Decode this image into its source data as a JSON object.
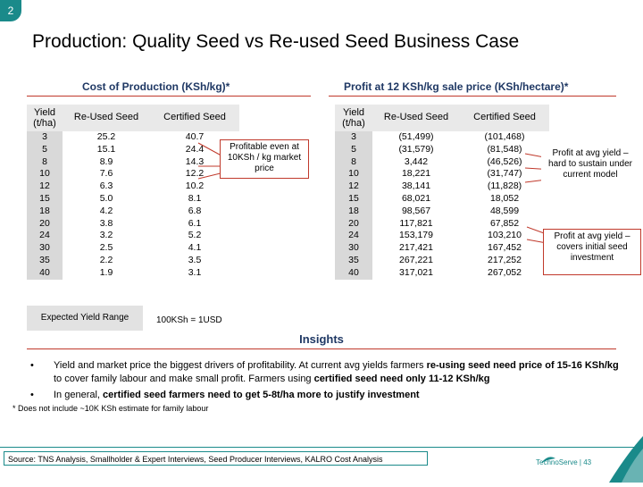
{
  "slide_number": "2",
  "title": "Production: Quality Seed vs Re-used Seed Business Case",
  "left_section": {
    "heading": "Cost of Production (KSh/kg)*",
    "headers": [
      "Yield (t/ha)",
      "Re-Used Seed",
      "Certified Seed"
    ],
    "rows": [
      [
        "3",
        "25.2",
        "40.7"
      ],
      [
        "5",
        "15.1",
        "24.4"
      ],
      [
        "8",
        "8.9",
        "14.3"
      ],
      [
        "10",
        "7.6",
        "12.2"
      ],
      [
        "12",
        "6.3",
        "10.2"
      ],
      [
        "15",
        "5.0",
        "8.1"
      ],
      [
        "18",
        "4.2",
        "6.8"
      ],
      [
        "20",
        "3.8",
        "6.1"
      ],
      [
        "24",
        "3.2",
        "5.2"
      ],
      [
        "30",
        "2.5",
        "4.1"
      ],
      [
        "35",
        "2.2",
        "3.5"
      ],
      [
        "40",
        "1.9",
        "3.1"
      ]
    ],
    "callout": "Profitable even at 10KSh / kg market price",
    "expected_label": "Expected Yield Range",
    "exchange_note": "100KSh = 1USD"
  },
  "right_section": {
    "heading": "Profit at 12 KSh/kg sale price (KSh/hectare)*",
    "headers": [
      "Yield (t/ha)",
      "Re-Used Seed",
      "Certified Seed"
    ],
    "rows": [
      [
        "3",
        "(51,499)",
        "(101,468)"
      ],
      [
        "5",
        "(31,579)",
        "(81,548)"
      ],
      [
        "8",
        "3,442",
        "(46,526)"
      ],
      [
        "10",
        "18,221",
        "(31,747)"
      ],
      [
        "12",
        "38,141",
        "(11,828)"
      ],
      [
        "15",
        "68,021",
        "18,052"
      ],
      [
        "18",
        "98,567",
        "48,599"
      ],
      [
        "20",
        "117,821",
        "67,852"
      ],
      [
        "24",
        "153,179",
        "103,210"
      ],
      [
        "30",
        "217,421",
        "167,452"
      ],
      [
        "35",
        "267,221",
        "217,252"
      ],
      [
        "40",
        "317,021",
        "267,052"
      ]
    ],
    "callout_top": "Profit at avg yield – hard to sustain under current model",
    "callout_bottom": "Profit at avg yield – covers initial seed investment"
  },
  "insights": {
    "heading": "Insights",
    "bullet1_a": "Yield and market price the biggest drivers of profitability. At current avg yields farmers ",
    "bullet1_b": "re-using seed need price of 15-16 KSh/kg",
    "bullet1_c": " to cover family labour and make small profit. Farmers using ",
    "bullet1_d": "certified seed need only 11-12 KSh/kg",
    "bullet2_a": "In general, ",
    "bullet2_b": "certified seed farmers need to get 5-8t/ha more to justify investment",
    "footnote": "* Does not include ~10K KSh estimate for family labour"
  },
  "footer": {
    "source": "Source: TNS Analysis, Smallholder & Expert Interviews, Seed Producer Interviews, KALRO Cost Analysis",
    "brand": "TechnoServe | 43"
  },
  "colors": {
    "accent": "#1a8a8a",
    "heading": "#1f3864",
    "callout_border": "#c0392b"
  }
}
